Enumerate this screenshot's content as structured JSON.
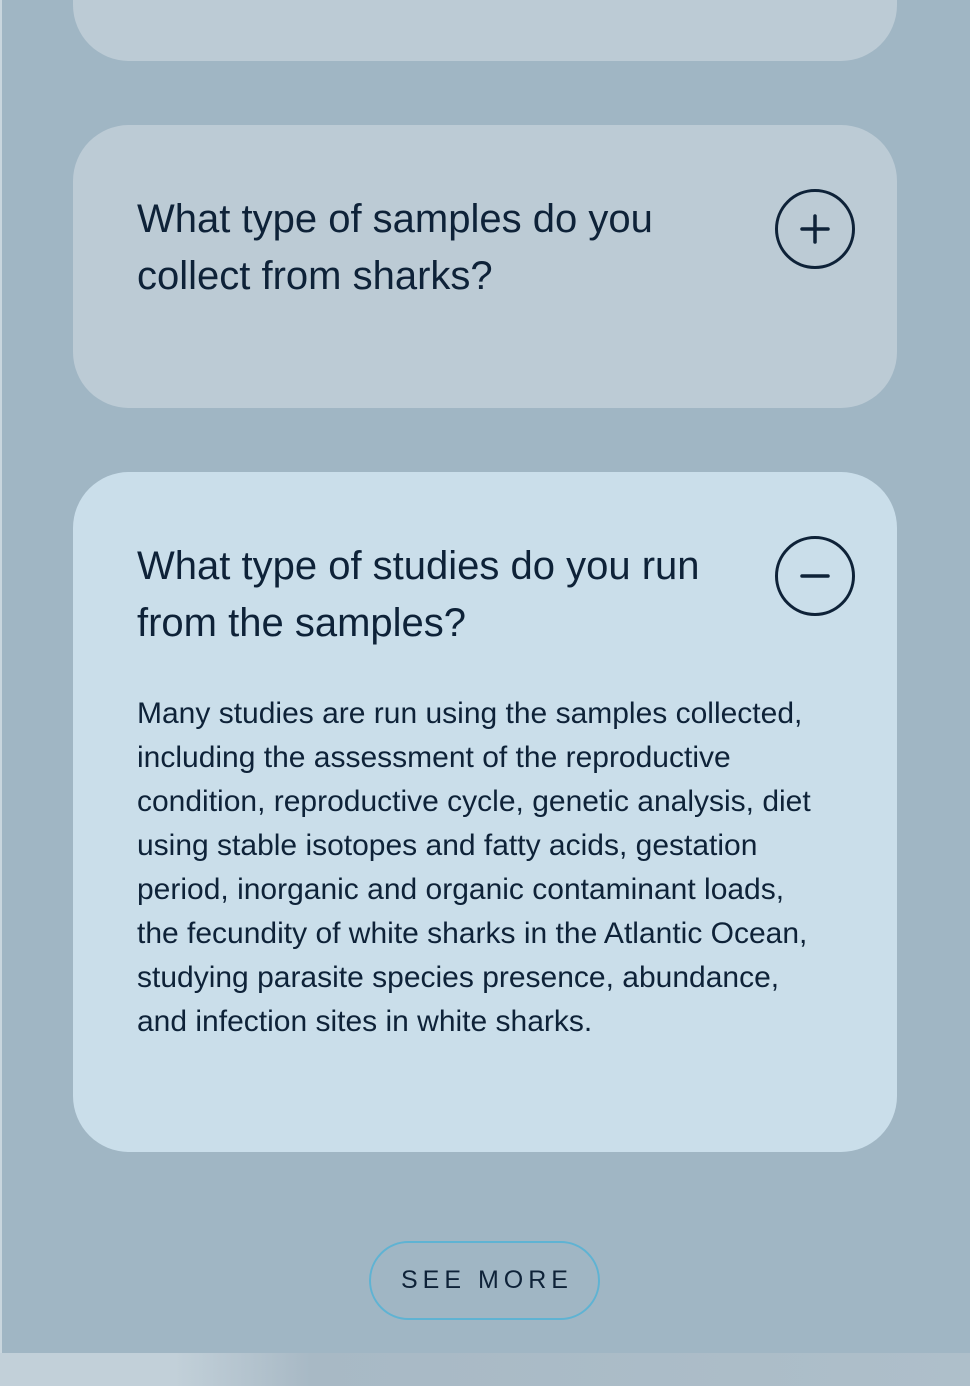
{
  "faq": {
    "items": [
      {
        "question": "What type of samples do you collect from sharks?",
        "expanded": false,
        "toggle_icon": "plus-icon"
      },
      {
        "question": "What type of studies do you run from the samples?",
        "expanded": true,
        "toggle_icon": "minus-icon",
        "answer": "Many studies are run using the samples collected, including the assessment of the reproductive condition, reproductive cycle, genetic analysis, diet using stable isotopes and fatty acids, gestation period, inorganic and organic contaminant loads, the fecundity of white sharks in the Atlantic Ocean, studying parasite species presence, abundance, and infection sites in white sharks."
      }
    ],
    "see_more_label": "SEE MORE"
  },
  "colors": {
    "page_background": "#a0b6c4",
    "collapsed_card": "#bccbd5",
    "expanded_card": "#cadeea",
    "text": "#0e2238",
    "button_border": "#5fb3d3"
  }
}
